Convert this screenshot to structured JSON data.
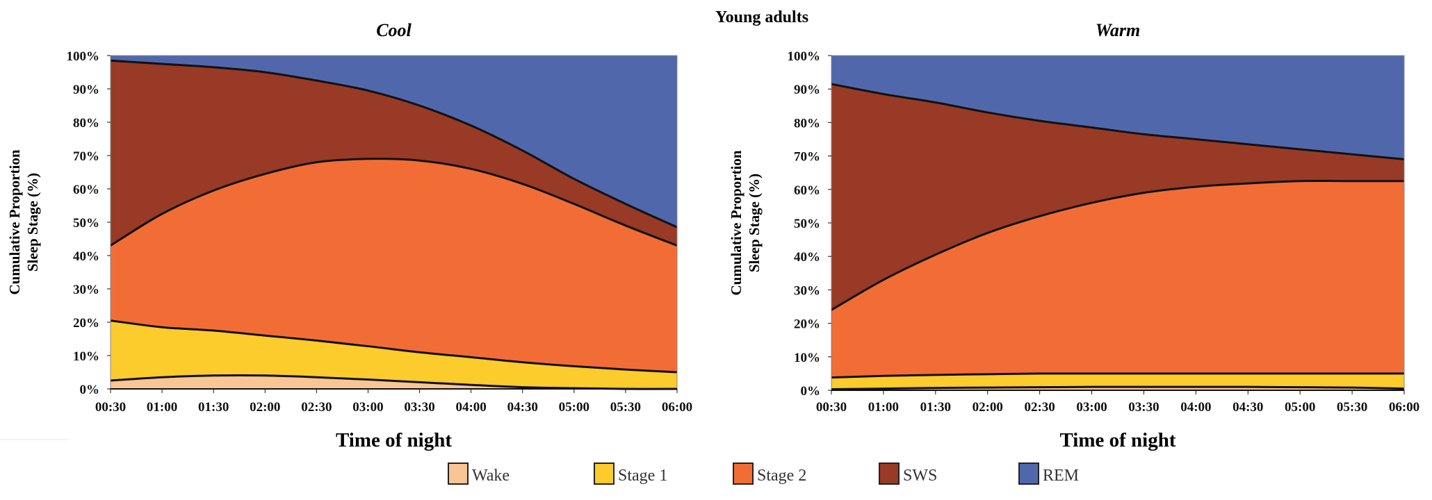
{
  "chart_data": {
    "title": "Young adults",
    "type": "area",
    "stacked": true,
    "value_kind": "cumulative upper boundary of each stage (%)",
    "legend": {
      "placement": "bottom",
      "entries": [
        {
          "name": "Wake",
          "color": "#F8C595"
        },
        {
          "name": "Stage 1",
          "color": "#FCCB2C"
        },
        {
          "name": "Stage 2",
          "color": "#F26D35"
        },
        {
          "name": "SWS",
          "color": "#983A25"
        },
        {
          "name": "REM",
          "color": "#5068AB"
        }
      ]
    },
    "x": [
      "00:30",
      "01:00",
      "01:30",
      "02:00",
      "02:30",
      "03:00",
      "03:30",
      "04:00",
      "04:30",
      "05:00",
      "05:30",
      "06:00"
    ],
    "xlabel": "Time of night",
    "ylabel_line1": "Cumulative Proportion",
    "ylabel_line2": "Sleep Stage (%)",
    "ylim": [
      0,
      100
    ],
    "yticks": [
      "0%",
      "10%",
      "20%",
      "30%",
      "40%",
      "50%",
      "60%",
      "70%",
      "80%",
      "90%",
      "100%"
    ],
    "panels": [
      {
        "subtitle": "Cool",
        "series": [
          {
            "name": "Wake",
            "values": [
              2.5,
              3.5,
              4,
              4,
              3.5,
              2.8,
              2,
              1.2,
              0.5,
              0.2,
              0,
              0
            ]
          },
          {
            "name": "Stage 1",
            "values": [
              20.5,
              18.5,
              17.5,
              16,
              14.5,
              12.8,
              11,
              9.5,
              8,
              6.8,
              5.8,
              5
            ]
          },
          {
            "name": "Stage 2",
            "values": [
              43,
              52.5,
              59.5,
              64.5,
              68,
              69,
              68.5,
              66,
              61.5,
              55.5,
              49,
              43
            ]
          },
          {
            "name": "SWS",
            "values": [
              98.5,
              97.5,
              96.5,
              95,
              92.5,
              89.5,
              85,
              79,
              71.5,
              63,
              55.5,
              48.5
            ]
          },
          {
            "name": "REM",
            "values": [
              100,
              100,
              100,
              100,
              100,
              100,
              100,
              100,
              100,
              100,
              100,
              100
            ]
          }
        ]
      },
      {
        "subtitle": "Warm",
        "series": [
          {
            "name": "Wake",
            "values": [
              0.3,
              0.5,
              0.7,
              0.8,
              0.9,
              1,
              1,
              1,
              1,
              0.9,
              0.8,
              0.5
            ]
          },
          {
            "name": "Stage 1",
            "values": [
              3.8,
              4.3,
              4.6,
              4.8,
              5,
              5,
              5,
              5,
              5,
              5,
              5,
              5
            ]
          },
          {
            "name": "Stage 2",
            "values": [
              24,
              33,
              40.5,
              47,
              52,
              56,
              59,
              60.8,
              61.8,
              62.5,
              62.5,
              62.5
            ]
          },
          {
            "name": "SWS",
            "values": [
              91.5,
              88.5,
              86,
              83,
              80.5,
              78.5,
              76.5,
              75,
              73.5,
              72,
              70.5,
              69
            ]
          },
          {
            "name": "REM",
            "values": [
              100,
              100,
              100,
              100,
              100,
              100,
              100,
              100,
              100,
              100,
              100,
              100
            ]
          }
        ]
      }
    ]
  }
}
